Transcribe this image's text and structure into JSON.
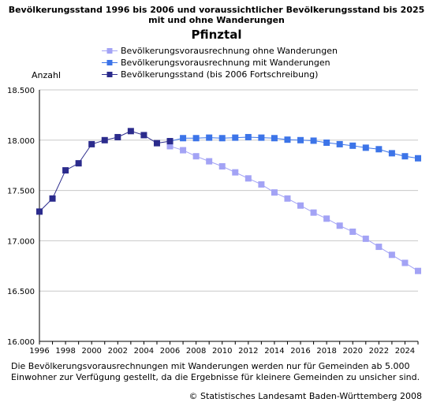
{
  "chart_data": {
    "type": "line",
    "title": "Bevölkerungsstand 1996 bis 2006 und voraussichtlicher Bevölkerungsstand bis 2025",
    "title_line2": "mit und ohne Wanderungen",
    "subtitle": "Pfinztal",
    "ylabel": "Anzahl",
    "xlabel": "",
    "ylim": [
      16000,
      18500
    ],
    "xlim": [
      1996,
      2025
    ],
    "yticks": [
      16000,
      16500,
      17000,
      17500,
      18000,
      18500
    ],
    "ytick_labels": [
      "16.000",
      "16.500",
      "17.000",
      "17.500",
      "18.000",
      "18.500"
    ],
    "xticks": [
      1996,
      1998,
      2000,
      2002,
      2004,
      2006,
      2008,
      2010,
      2012,
      2014,
      2016,
      2018,
      2020,
      2022,
      2024
    ],
    "xtick_labels": [
      "1996",
      "1998",
      "2000",
      "2002",
      "2004",
      "2006",
      "2008",
      "2010",
      "2012",
      "2014",
      "2016",
      "2018",
      "2020",
      "2022",
      "2024"
    ],
    "grid": true,
    "legend_position": "top",
    "series": [
      {
        "name": "Bevölkerungsvorausrechnung ohne Wanderungen",
        "color": "#a3a3f5",
        "x": [
          2006,
          2007,
          2008,
          2009,
          2010,
          2011,
          2012,
          2013,
          2014,
          2015,
          2016,
          2017,
          2018,
          2019,
          2020,
          2021,
          2022,
          2023,
          2024,
          2025
        ],
        "values": [
          17940,
          17900,
          17840,
          17790,
          17740,
          17680,
          17620,
          17560,
          17480,
          17420,
          17350,
          17280,
          17220,
          17150,
          17090,
          17020,
          16940,
          16860,
          16780,
          16700
        ]
      },
      {
        "name": "Bevölkerungsvorausrechnung mit Wanderungen",
        "color": "#3c74e8",
        "x": [
          2006,
          2007,
          2008,
          2009,
          2010,
          2011,
          2012,
          2013,
          2014,
          2015,
          2016,
          2017,
          2018,
          2019,
          2020,
          2021,
          2022,
          2023,
          2024,
          2025
        ],
        "values": [
          17990,
          18020,
          18020,
          18025,
          18020,
          18025,
          18030,
          18025,
          18020,
          18005,
          18000,
          17995,
          17975,
          17960,
          17945,
          17925,
          17910,
          17870,
          17840,
          17820
        ]
      },
      {
        "name": "Bevölkerungsstand (bis 2006 Fortschreibung)",
        "color": "#2b2b8c",
        "x": [
          1996,
          1997,
          1998,
          1999,
          2000,
          2001,
          2002,
          2003,
          2004,
          2005,
          2006
        ],
        "values": [
          17290,
          17420,
          17700,
          17770,
          17960,
          18000,
          18030,
          18090,
          18050,
          17970,
          17990
        ]
      }
    ],
    "footnote_line1": "Die Bevölkerungsvorausrechnungen mit Wanderungen werden nur für Gemeinden ab 5.000",
    "footnote_line2": "Einwohner zur Verfügung gestellt, da die Ergebnisse für kleinere Gemeinden zu unsicher sind.",
    "source": "© Statistisches Landesamt Baden-Württemberg 2008"
  }
}
